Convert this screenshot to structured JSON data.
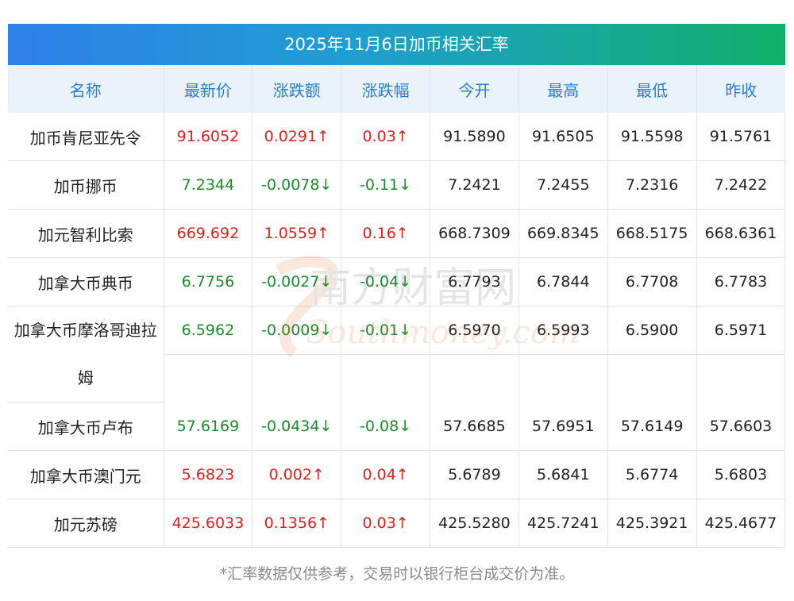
{
  "title": "2025年11月6日加币相关汇率",
  "headers": [
    "名称",
    "最新价",
    "涨跌额",
    "涨跌幅",
    "今开",
    "最高",
    "最低",
    "昨收"
  ],
  "rows": [
    {
      "name": "加币肯尼亚先令",
      "latest": "91.6052",
      "chg": "0.0291↑",
      "pct": "0.03↑",
      "open": "91.5890",
      "high": "91.6505",
      "low": "91.5598",
      "prev": "91.5761",
      "dir": "up"
    },
    {
      "name": "加币挪币",
      "latest": "7.2344",
      "chg": "-0.0078↓",
      "pct": "-0.11↓",
      "open": "7.2421",
      "high": "7.2455",
      "low": "7.2316",
      "prev": "7.2422",
      "dir": "down"
    },
    {
      "name": "加元智利比索",
      "latest": "669.692",
      "chg": "1.0559↑",
      "pct": "0.16↑",
      "open": "668.7309",
      "high": "669.8345",
      "low": "668.5175",
      "prev": "668.6361",
      "dir": "up"
    },
    {
      "name": "加拿大币典币",
      "latest": "6.7756",
      "chg": "-0.0027↓",
      "pct": "-0.04↓",
      "open": "6.7793",
      "high": "6.7844",
      "low": "6.7708",
      "prev": "6.7783",
      "dir": "down"
    },
    {
      "name": "加拿大币摩洛哥迪拉姆",
      "latest": "6.5962",
      "chg": "-0.0009↓",
      "pct": "-0.01↓",
      "open": "6.5970",
      "high": "6.5993",
      "low": "6.5900",
      "prev": "6.5971",
      "dir": "down"
    },
    {
      "name": "加拿大币卢布",
      "latest": "57.6169",
      "chg": "-0.0434↓",
      "pct": "-0.08↓",
      "open": "57.6685",
      "high": "57.6951",
      "low": "57.6149",
      "prev": "57.6603",
      "dir": "down"
    },
    {
      "name": "加拿大币澳门元",
      "latest": "5.6823",
      "chg": "0.002↑",
      "pct": "0.04↑",
      "open": "5.6789",
      "high": "5.6841",
      "low": "5.6774",
      "prev": "5.6803",
      "dir": "up"
    },
    {
      "name": "加元苏磅",
      "latest": "425.6033",
      "chg": "0.1356↑",
      "pct": "0.03↑",
      "open": "425.5280",
      "high": "425.7241",
      "low": "425.3921",
      "prev": "425.4677",
      "dir": "up"
    }
  ],
  "note": "*汇率数据仅供参考，交易时以银行柜台成交价为准。",
  "watermark": {
    "cn": "南方财富网",
    "en": "Southmoney.com"
  },
  "colors": {
    "up": "#e0201e",
    "down": "#1d8a2e",
    "header_text": "#2a7fd4"
  }
}
